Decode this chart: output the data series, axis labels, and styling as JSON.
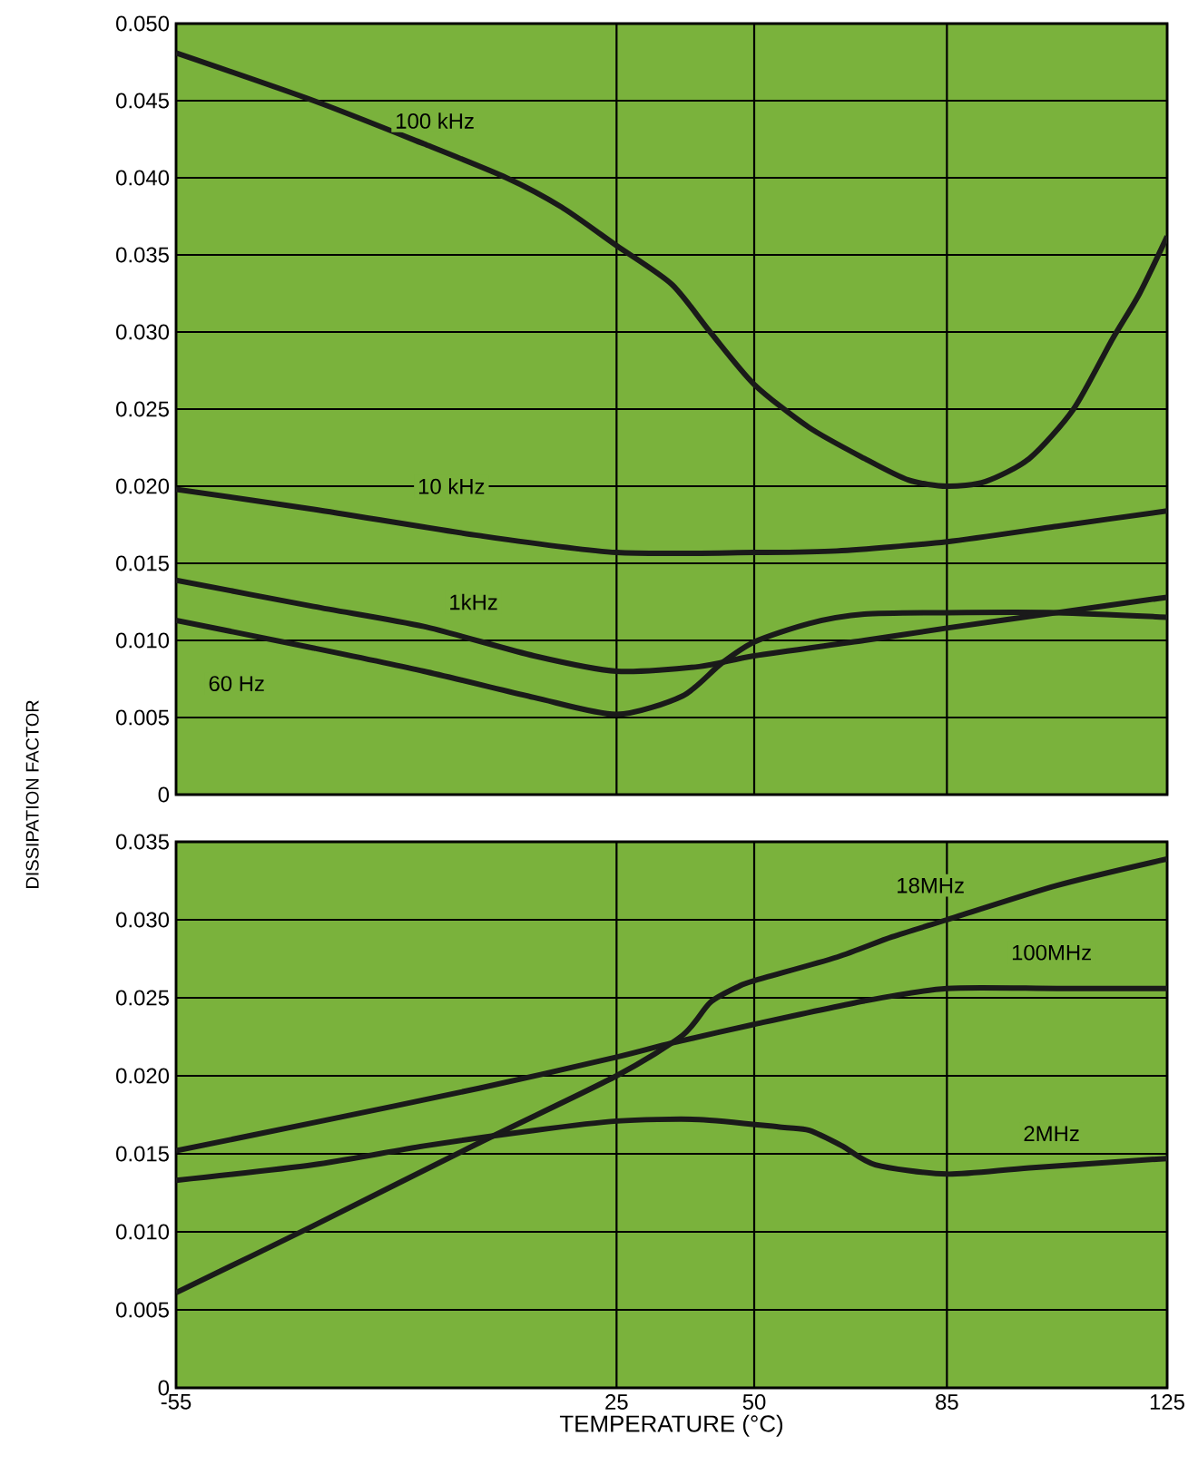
{
  "chart_data": [
    {
      "type": "line",
      "ylabel": "DISSIPATION FACTOR",
      "xlim": [
        -55,
        125
      ],
      "xticks": [
        -55,
        25,
        50,
        85,
        125
      ],
      "ylim": [
        0,
        0.05
      ],
      "yticks": [
        0,
        {
          "value": 0.005,
          "label": "0.005"
        },
        {
          "value": 0.01,
          "label": "0.010"
        },
        {
          "value": 0.015,
          "label": "0.015"
        },
        {
          "value": 0.02,
          "label": "0.020"
        },
        {
          "value": 0.025,
          "label": "0.025"
        },
        {
          "value": 0.03,
          "label": "0.030"
        },
        {
          "value": 0.035,
          "label": "0.035"
        },
        {
          "value": 0.04,
          "label": "0.040"
        },
        {
          "value": 0.045,
          "label": "0.045"
        },
        {
          "value": 0.05,
          "label": "0.050"
        }
      ],
      "grid": true,
      "tick_labels": "y",
      "x": [
        -55,
        -30,
        -10,
        5,
        15,
        25,
        35,
        42,
        50,
        60,
        70,
        78,
        85,
        92,
        100,
        108,
        115,
        120,
        125
      ],
      "series": [
        {
          "name": "100 kHz",
          "color": "#1a1a1a",
          "values": [
            0.0481,
            0.045,
            0.0422,
            0.04,
            0.0381,
            0.0356,
            0.0331,
            0.03,
            0.0266,
            0.0238,
            0.0218,
            0.0204,
            0.02,
            0.0203,
            0.0218,
            0.025,
            0.0295,
            0.0325,
            0.0362
          ]
        },
        {
          "name": "10 kHz",
          "color": "#1a1a1a",
          "x": [
            -55,
            -30,
            0,
            25,
            50,
            65,
            85,
            105,
            125
          ],
          "values": [
            0.0198,
            0.0185,
            0.0168,
            0.0157,
            0.0157,
            0.0158,
            0.0164,
            0.0174,
            0.0184
          ]
        },
        {
          "name": "1kHz",
          "color": "#1a1a1a",
          "x": [
            -55,
            -30,
            -10,
            10,
            25,
            40,
            50,
            70,
            85,
            105,
            125
          ],
          "values": [
            0.0139,
            0.0122,
            0.0109,
            0.009,
            0.008,
            0.0083,
            0.009,
            0.01,
            0.0108,
            0.0118,
            0.0128
          ]
        },
        {
          "name": "60 Hz",
          "color": "#1a1a1a",
          "x": [
            -55,
            -30,
            -10,
            10,
            25,
            37,
            44,
            50,
            60,
            70,
            85,
            105,
            125
          ],
          "values": [
            0.0113,
            0.0095,
            0.008,
            0.0063,
            0.0052,
            0.0064,
            0.0085,
            0.0099,
            0.0111,
            0.0117,
            0.0118,
            0.0118,
            0.0115
          ]
        }
      ]
    },
    {
      "type": "line",
      "xlabel": "TEMPERATURE (°C)",
      "xlim": [
        -55,
        125
      ],
      "xticks": [
        -55,
        25,
        50,
        85,
        125
      ],
      "ylim": [
        0,
        0.035
      ],
      "yticks": [
        0,
        {
          "value": 0.005,
          "label": "0.005"
        },
        {
          "value": 0.01,
          "label": "0.010"
        },
        {
          "value": 0.015,
          "label": "0.015"
        },
        {
          "value": 0.02,
          "label": "0.020"
        },
        {
          "value": 0.025,
          "label": "0.025"
        },
        {
          "value": 0.03,
          "label": "0.030"
        },
        {
          "value": 0.035,
          "label": "0.035"
        }
      ],
      "grid": true,
      "series": [
        {
          "name": "18MHz",
          "color": "#1a1a1a",
          "x": [
            -55,
            -30,
            0,
            25,
            37,
            42,
            47,
            50,
            65,
            75,
            85,
            105,
            125
          ],
          "values": [
            0.0061,
            0.0104,
            0.0157,
            0.02,
            0.0226,
            0.0247,
            0.0257,
            0.0261,
            0.0276,
            0.0289,
            0.03,
            0.0322,
            0.0339
          ]
        },
        {
          "name": "100MHz",
          "color": "#1a1a1a",
          "x": [
            -55,
            -30,
            0,
            25,
            35,
            50,
            70,
            85,
            105,
            125
          ],
          "values": [
            0.0152,
            0.017,
            0.0192,
            0.0212,
            0.0221,
            0.0233,
            0.0248,
            0.0256,
            0.0256,
            0.0256
          ]
        },
        {
          "name": "2MHz",
          "color": "#1a1a1a",
          "x": [
            -55,
            -30,
            -10,
            10,
            25,
            40,
            55,
            60,
            66,
            72,
            85,
            100,
            125
          ],
          "values": [
            0.0133,
            0.0143,
            0.0155,
            0.0165,
            0.0171,
            0.0172,
            0.0167,
            0.0165,
            0.0155,
            0.0143,
            0.0137,
            0.0141,
            0.0147
          ]
        }
      ]
    }
  ]
}
